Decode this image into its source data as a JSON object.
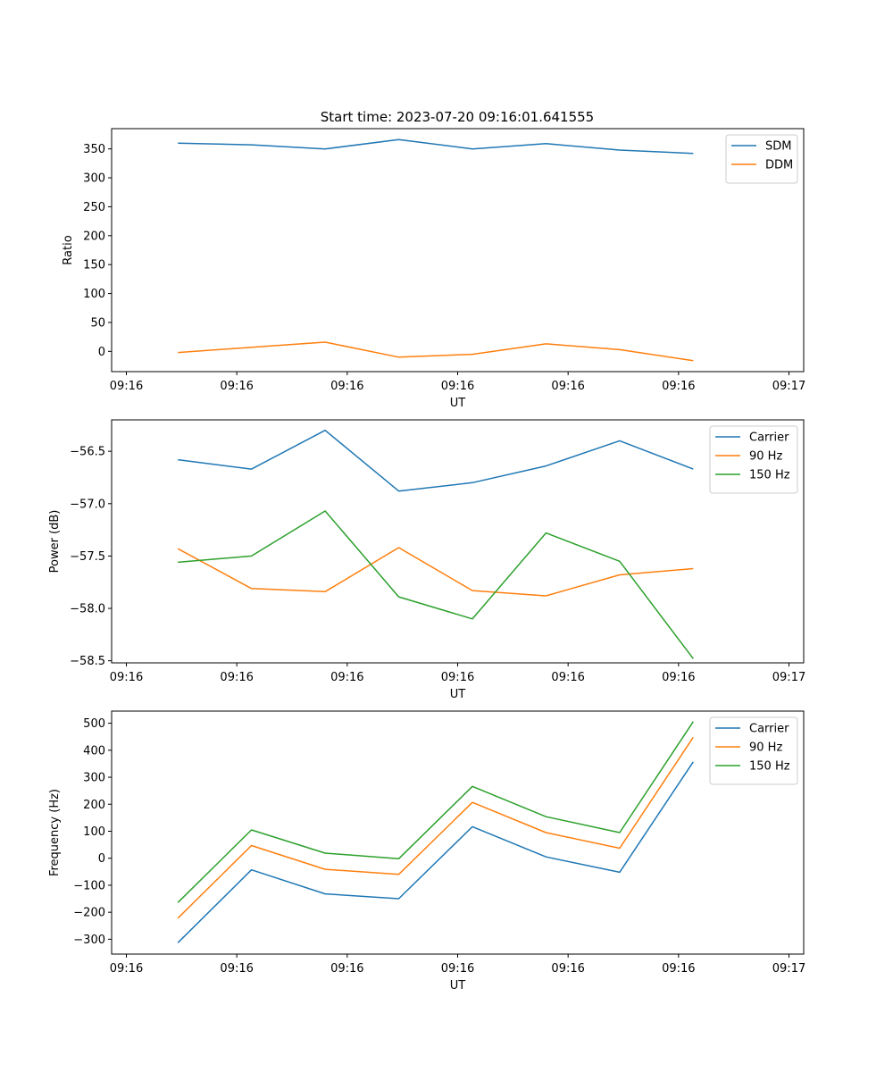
{
  "title": "Start time: 2023-07-20 09:16:01.641555",
  "colors": {
    "blue": "#1f77b4",
    "orange": "#ff7f0e",
    "green": "#2ca02c"
  },
  "chart_data": [
    {
      "type": "line",
      "ylabel": "Ratio",
      "xlabel": "UT",
      "xlim": [
        -0.6,
        8.8
      ],
      "ylim": [
        -35,
        385
      ],
      "yticks": [
        0,
        50,
        100,
        150,
        200,
        250,
        300,
        350
      ],
      "ytick_labels": [
        "0",
        "50",
        "100",
        "150",
        "200",
        "250",
        "300",
        "350"
      ],
      "xticks": [
        -0.4,
        1.1,
        2.6,
        4.1,
        5.6,
        7.1,
        8.6
      ],
      "xtick_labels": [
        "09:16",
        "09:16",
        "09:16",
        "09:16",
        "09:16",
        "09:16",
        "09:17"
      ],
      "x": [
        0.3,
        1.3,
        2.3,
        3.3,
        4.3,
        5.3,
        6.3,
        7.3
      ],
      "legend_loc": "upper-right",
      "series": [
        {
          "name": "SDM",
          "color": "#1f77b4",
          "values": [
            360,
            357,
            350,
            366,
            350,
            359,
            348,
            342
          ]
        },
        {
          "name": "DDM",
          "color": "#ff7f0e",
          "values": [
            -2,
            7,
            16,
            -10,
            -5,
            13,
            3,
            -16
          ]
        }
      ]
    },
    {
      "type": "line",
      "ylabel": "Power (dB)",
      "xlabel": "UT",
      "xlim": [
        -0.6,
        8.8
      ],
      "ylim": [
        -58.52,
        -56.2
      ],
      "yticks": [
        -58.5,
        -58.0,
        -57.5,
        -57.0,
        -56.5
      ],
      "ytick_labels": [
        "−58.5",
        "−58.0",
        "−57.5",
        "−57.0",
        "−56.5"
      ],
      "xticks": [
        -0.4,
        1.1,
        2.6,
        4.1,
        5.6,
        7.1,
        8.6
      ],
      "xtick_labels": [
        "09:16",
        "09:16",
        "09:16",
        "09:16",
        "09:16",
        "09:16",
        "09:17"
      ],
      "x": [
        0.3,
        1.3,
        2.3,
        3.3,
        4.3,
        5.3,
        6.3,
        7.3
      ],
      "legend_loc": "upper-right",
      "series": [
        {
          "name": "Carrier",
          "color": "#1f77b4",
          "values": [
            -56.58,
            -56.67,
            -56.3,
            -56.88,
            -56.8,
            -56.64,
            -56.4,
            -56.67
          ]
        },
        {
          "name": "90 Hz",
          "color": "#ff7f0e",
          "values": [
            -57.43,
            -57.81,
            -57.84,
            -57.42,
            -57.83,
            -57.88,
            -57.68,
            -57.62
          ]
        },
        {
          "name": "150 Hz",
          "color": "#2ca02c",
          "values": [
            -57.56,
            -57.5,
            -57.07,
            -57.89,
            -58.1,
            -57.28,
            -57.55,
            -58.48
          ]
        }
      ]
    },
    {
      "type": "line",
      "ylabel": "Frequency (Hz)",
      "xlabel": "UT",
      "xlim": [
        -0.6,
        8.8
      ],
      "ylim": [
        -355,
        545
      ],
      "yticks": [
        -300,
        -200,
        -100,
        0,
        100,
        200,
        300,
        400,
        500
      ],
      "ytick_labels": [
        "−300",
        "−200",
        "−100",
        "0",
        "100",
        "200",
        "300",
        "400",
        "500"
      ],
      "xticks": [
        -0.4,
        1.1,
        2.6,
        4.1,
        5.6,
        7.1,
        8.6
      ],
      "xtick_labels": [
        "09:16",
        "09:16",
        "09:16",
        "09:16",
        "09:16",
        "09:16",
        "09:17"
      ],
      "x": [
        0.3,
        1.3,
        2.3,
        3.3,
        4.3,
        5.3,
        6.3,
        7.3
      ],
      "legend_loc": "upper-right",
      "series": [
        {
          "name": "Carrier",
          "color": "#1f77b4",
          "values": [
            -313,
            -43,
            -132,
            -150,
            117,
            5,
            -52,
            357
          ]
        },
        {
          "name": "90 Hz",
          "color": "#ff7f0e",
          "values": [
            -222,
            47,
            -41,
            -60,
            207,
            95,
            37,
            448
          ]
        },
        {
          "name": "150 Hz",
          "color": "#2ca02c",
          "values": [
            -164,
            105,
            19,
            -2,
            266,
            154,
            95,
            506
          ]
        }
      ]
    }
  ]
}
